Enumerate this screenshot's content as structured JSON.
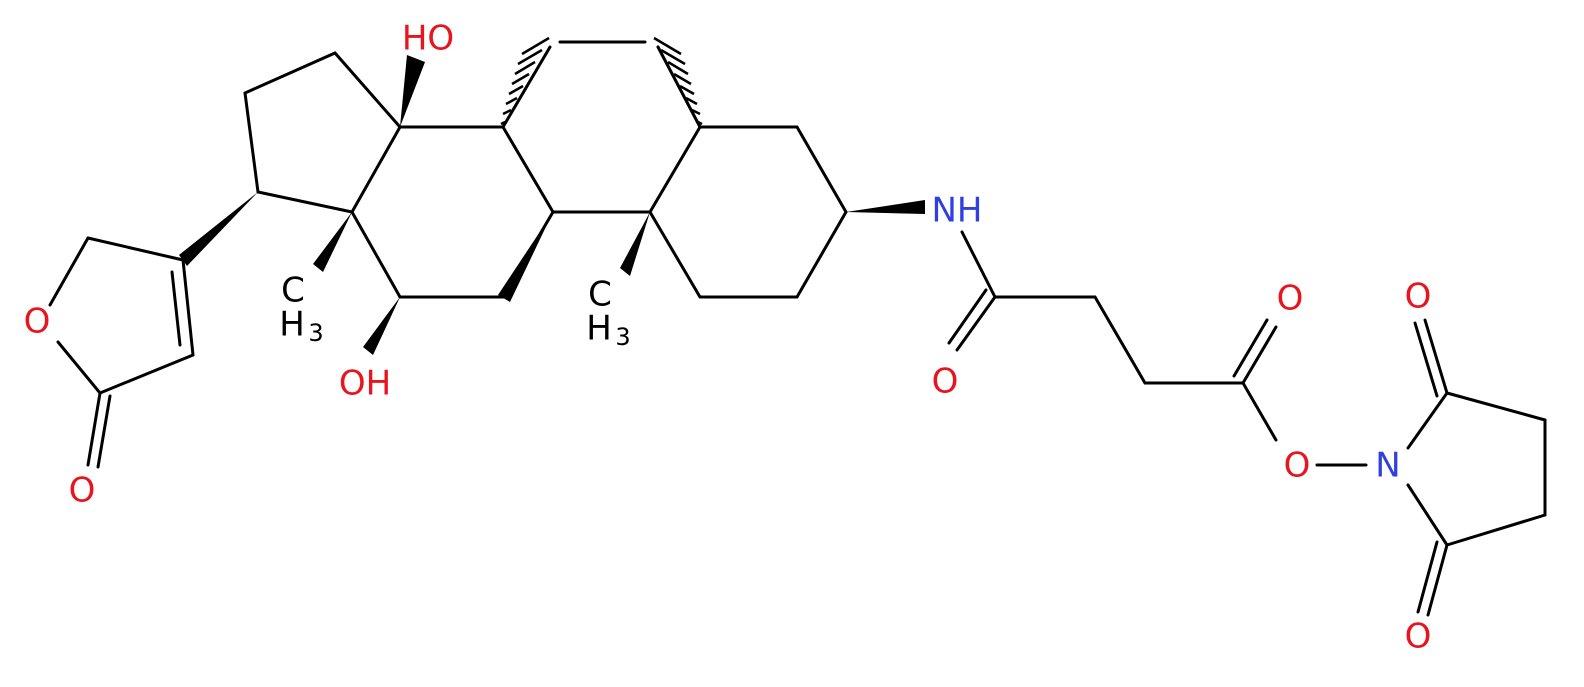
{
  "atoms": [
    {
      "label": "HO"
    },
    {
      "label": "OH"
    },
    {
      "label": "NH"
    },
    {
      "label": "O"
    },
    {
      "label": "O"
    },
    {
      "label": "O"
    },
    {
      "label": "N"
    },
    {
      "label": "O"
    },
    {
      "label": "O"
    },
    {
      "label": "O"
    },
    {
      "label": "O"
    }
  ],
  "methyls": [
    {
      "c": "C",
      "h": "H",
      "sub": "3"
    },
    {
      "c": "C",
      "h": "H",
      "sub": "3"
    }
  ]
}
